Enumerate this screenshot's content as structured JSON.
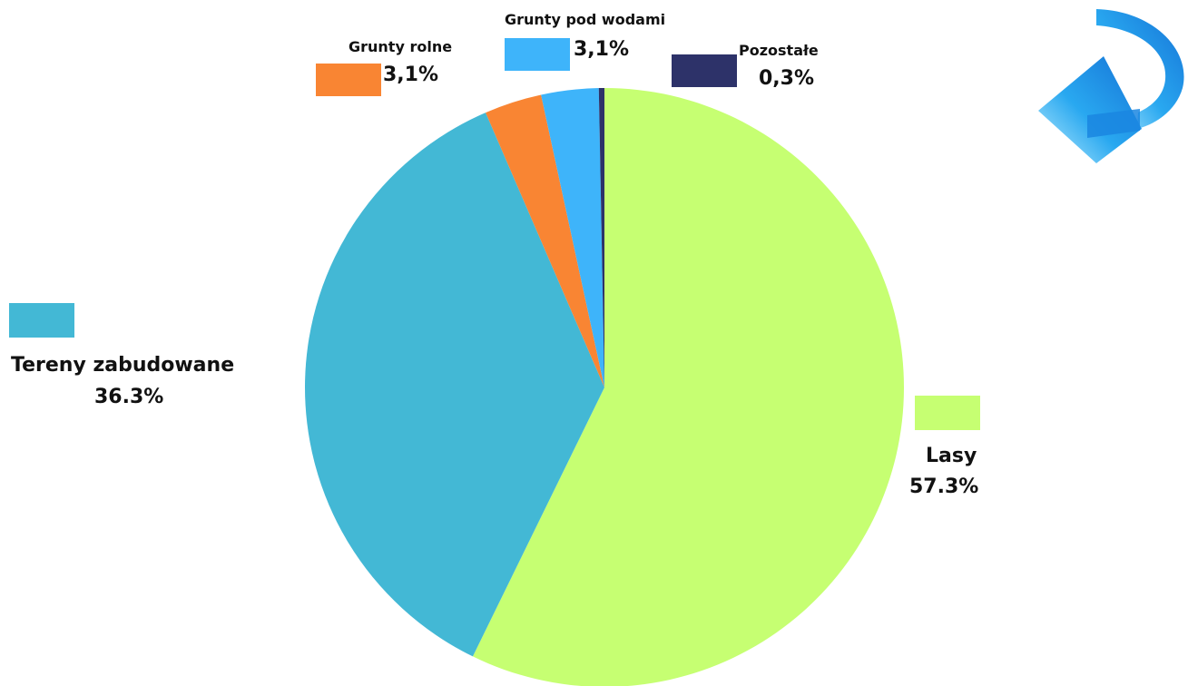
{
  "chart_data": {
    "type": "pie",
    "start_angle_deg": 0,
    "direction": "clockwise",
    "slices": [
      {
        "label": "Lasy",
        "value_label": "57.3%",
        "value": 57.3,
        "color": "#c6ff72"
      },
      {
        "label": "Tereny zabudowane",
        "value_label": "36.3%",
        "value": 36.3,
        "color": "#43b8d5"
      },
      {
        "label": "Grunty rolne",
        "value_label": "3,1%",
        "value": 3.1,
        "color": "#f98533"
      },
      {
        "label": "Grunty pod wodami",
        "value_label": "3,1%",
        "value": 3.1,
        "color": "#3eb4fa"
      },
      {
        "label": "Pozostałe",
        "value_label": "0,3%",
        "value": 0.3,
        "color": "#2d3269"
      }
    ]
  },
  "decor": {
    "arrow_icon": "curved-arrow-icon",
    "arrow_color": "#1e8fe3"
  }
}
